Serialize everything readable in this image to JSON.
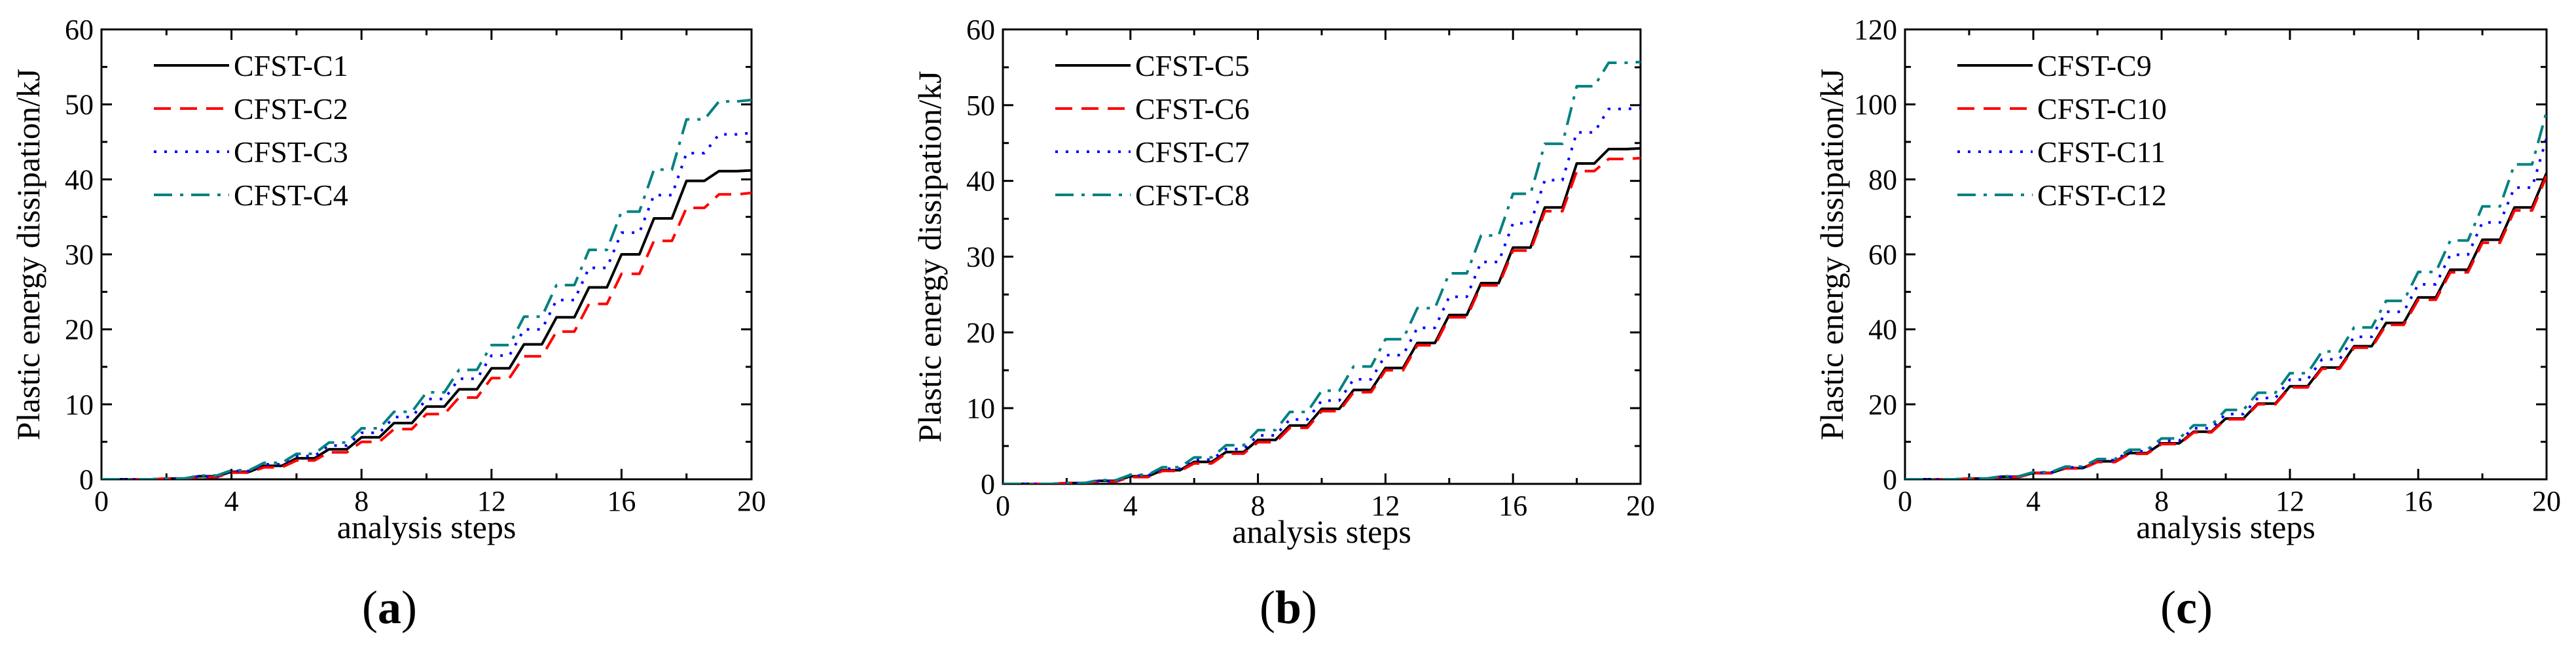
{
  "figure": {
    "panels": [
      {
        "label_open": "(",
        "label_letter": "a",
        "label_close": ")"
      },
      {
        "label_open": "(",
        "label_letter": "b",
        "label_close": ")"
      },
      {
        "label_open": "(",
        "label_letter": "c",
        "label_close": ")"
      }
    ]
  },
  "colors": {
    "black": "#000000",
    "red": "#ff0000",
    "blue": "#0000ff",
    "teal": "#008080"
  },
  "chart_data": [
    {
      "type": "line",
      "panel": "a",
      "title": "",
      "xlabel": "analysis steps",
      "ylabel": "Plastic energy dissipation/kJ",
      "xlim": [
        0,
        20
      ],
      "ylim": [
        0,
        60
      ],
      "xticks": [
        0,
        4,
        8,
        12,
        16,
        20
      ],
      "yticks": [
        0,
        10,
        20,
        30,
        40,
        50,
        60
      ],
      "legend_position": "top-left",
      "x": [
        0,
        1,
        2,
        3,
        4,
        5,
        6,
        7,
        8,
        9,
        10,
        11,
        12,
        13,
        14,
        15,
        16,
        17,
        18,
        19,
        20
      ],
      "series": [
        {
          "name": "CFST-C1",
          "color": "black",
          "dash": "solid",
          "values": [
            0,
            0,
            0.1,
            0.4,
            1.0,
            1.8,
            2.8,
            4.0,
            5.6,
            7.5,
            9.7,
            12.0,
            14.8,
            18.0,
            21.6,
            25.6,
            30.0,
            34.8,
            39.8,
            41.1,
            41.2
          ]
        },
        {
          "name": "CFST-C2",
          "color": "red",
          "dash": "dashed",
          "values": [
            0,
            0,
            0.1,
            0.3,
            0.9,
            1.6,
            2.5,
            3.6,
            5.0,
            6.7,
            8.7,
            10.9,
            13.5,
            16.4,
            19.7,
            23.4,
            27.4,
            31.8,
            36.2,
            38.0,
            38.2
          ]
        },
        {
          "name": "CFST-C3",
          "color": "blue",
          "dash": "dotted",
          "values": [
            0,
            0,
            0.1,
            0.4,
            1.1,
            2.0,
            3.1,
            4.5,
            6.2,
            8.3,
            10.7,
            13.4,
            16.5,
            20.0,
            23.9,
            28.2,
            32.9,
            37.9,
            43.5,
            46.0,
            46.2
          ]
        },
        {
          "name": "CFST-C4",
          "color": "teal",
          "dash": "dashdot",
          "values": [
            0,
            0,
            0.1,
            0.5,
            1.2,
            2.2,
            3.4,
            4.9,
            6.8,
            9.0,
            11.6,
            14.6,
            17.9,
            21.7,
            25.9,
            30.6,
            35.7,
            41.3,
            48.0,
            50.4,
            50.6
          ]
        }
      ]
    },
    {
      "type": "line",
      "panel": "b",
      "title": "",
      "xlabel": "analysis steps",
      "ylabel": "Plastic energy dissipation/kJ",
      "xlim": [
        0,
        20
      ],
      "ylim": [
        0,
        60
      ],
      "xticks": [
        0,
        4,
        8,
        12,
        16,
        20
      ],
      "yticks": [
        0,
        10,
        20,
        30,
        40,
        50,
        60
      ],
      "legend_position": "top-left",
      "x": [
        0,
        1,
        2,
        3,
        4,
        5,
        6,
        7,
        8,
        9,
        10,
        11,
        12,
        13,
        14,
        15,
        16,
        17,
        18,
        19,
        20
      ],
      "series": [
        {
          "name": "CFST-C5",
          "color": "black",
          "dash": "solid",
          "values": [
            0,
            0,
            0.1,
            0.4,
            1.0,
            1.8,
            2.9,
            4.2,
            5.8,
            7.7,
            9.9,
            12.4,
            15.3,
            18.6,
            22.3,
            26.5,
            31.2,
            36.5,
            42.3,
            44.2,
            44.3
          ]
        },
        {
          "name": "CFST-C6",
          "color": "red",
          "dash": "dashed",
          "values": [
            0,
            0,
            0.1,
            0.3,
            0.9,
            1.7,
            2.7,
            4.0,
            5.5,
            7.4,
            9.6,
            12.1,
            15.0,
            18.3,
            22.0,
            26.2,
            30.8,
            36.0,
            41.3,
            42.9,
            43.0
          ]
        },
        {
          "name": "CFST-C7",
          "color": "blue",
          "dash": "dotted",
          "values": [
            0,
            0,
            0.1,
            0.4,
            1.1,
            2.0,
            3.2,
            4.6,
            6.4,
            8.5,
            11.0,
            13.8,
            17.0,
            20.6,
            24.7,
            29.3,
            34.4,
            40.1,
            46.4,
            49.5,
            49.6
          ]
        },
        {
          "name": "CFST-C8",
          "color": "teal",
          "dash": "dashdot",
          "values": [
            0,
            0,
            0.1,
            0.5,
            1.2,
            2.2,
            3.5,
            5.1,
            7.1,
            9.5,
            12.3,
            15.5,
            19.1,
            23.2,
            27.8,
            32.8,
            38.3,
            44.9,
            52.5,
            55.6,
            55.7
          ]
        }
      ]
    },
    {
      "type": "line",
      "panel": "c",
      "title": "",
      "xlabel": "analysis steps",
      "ylabel": "Plastic energy dissipation/kJ",
      "xlim": [
        0,
        20
      ],
      "ylim": [
        0,
        120
      ],
      "xticks": [
        0,
        4,
        8,
        12,
        16,
        20
      ],
      "yticks": [
        0,
        20,
        40,
        60,
        80,
        100,
        120
      ],
      "legend_position": "top-left",
      "x": [
        0,
        1,
        2,
        3,
        4,
        5,
        6,
        7,
        8,
        9,
        10,
        11,
        12,
        13,
        14,
        15,
        16,
        17,
        18,
        19,
        20
      ],
      "series": [
        {
          "name": "CFST-C9",
          "color": "black",
          "dash": "solid",
          "values": [
            0,
            0,
            0.2,
            0.7,
            1.7,
            3.0,
            4.8,
            7.0,
            9.6,
            12.7,
            16.2,
            20.2,
            24.8,
            29.8,
            35.5,
            41.7,
            48.5,
            55.9,
            63.9,
            72.5,
            81.7
          ]
        },
        {
          "name": "CFST-C10",
          "color": "red",
          "dash": "dashed",
          "values": [
            0,
            0,
            0.2,
            0.6,
            1.6,
            2.9,
            4.6,
            6.8,
            9.4,
            12.5,
            16.0,
            20.0,
            24.5,
            29.5,
            35.1,
            41.2,
            47.9,
            55.2,
            63.1,
            71.7,
            80.9
          ]
        },
        {
          "name": "CFST-C11",
          "color": "blue",
          "dash": "dotted",
          "values": [
            0,
            0,
            0.2,
            0.7,
            1.8,
            3.2,
            5.1,
            7.5,
            10.3,
            13.6,
            17.4,
            21.7,
            26.6,
            32.0,
            38.0,
            44.7,
            52.0,
            59.9,
            68.5,
            77.8,
            91.0
          ]
        },
        {
          "name": "CFST-C12",
          "color": "teal",
          "dash": "dashdot",
          "values": [
            0,
            0,
            0.2,
            0.8,
            1.9,
            3.4,
            5.4,
            7.9,
            10.9,
            14.4,
            18.5,
            23.1,
            28.3,
            34.1,
            40.5,
            47.6,
            55.3,
            63.7,
            72.8,
            84.0,
            98.0
          ]
        }
      ]
    }
  ]
}
